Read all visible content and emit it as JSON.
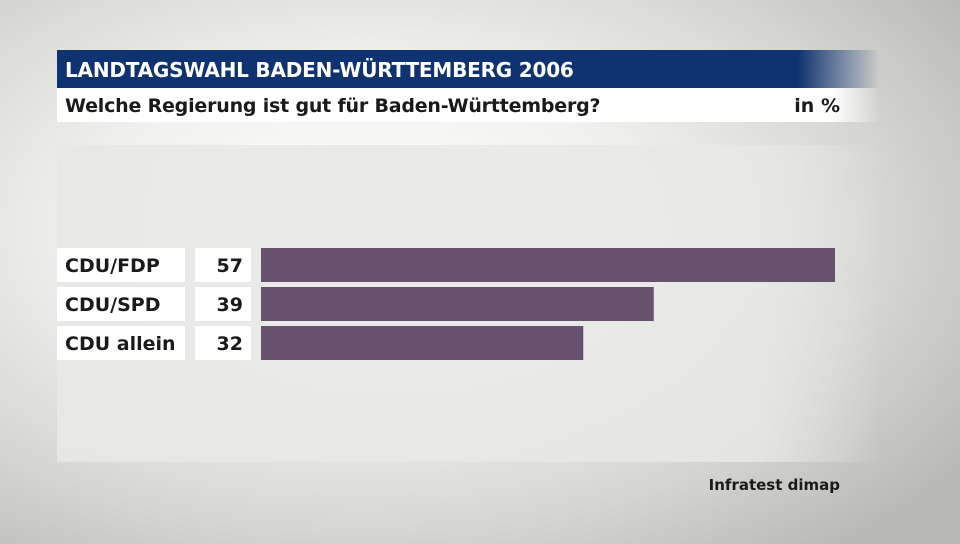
{
  "header": {
    "title": "LANDTAGSWAHL BADEN-WÜRTTEMBERG 2006",
    "subtitle": "Welche Regierung ist gut für Baden-Württemberg?",
    "unit": "in %"
  },
  "footer": {
    "source": "Infratest dimap"
  },
  "colors": {
    "bar": "#66526f",
    "title_bg": "#0f3270"
  },
  "chart_data": {
    "type": "bar",
    "orientation": "horizontal",
    "categories": [
      "CDU/FDP",
      "CDU/SPD",
      "CDU allein"
    ],
    "values": [
      57,
      39,
      32
    ],
    "value_labels": [
      "57",
      "39",
      "32"
    ],
    "title": "LANDTAGSWAHL BADEN-WÜRTTEMBERG 2006",
    "subtitle": "Welche Regierung ist gut für Baden-Württemberg?",
    "unit": "in %",
    "xlim": [
      0,
      57
    ],
    "grid": false,
    "legend": "none"
  }
}
